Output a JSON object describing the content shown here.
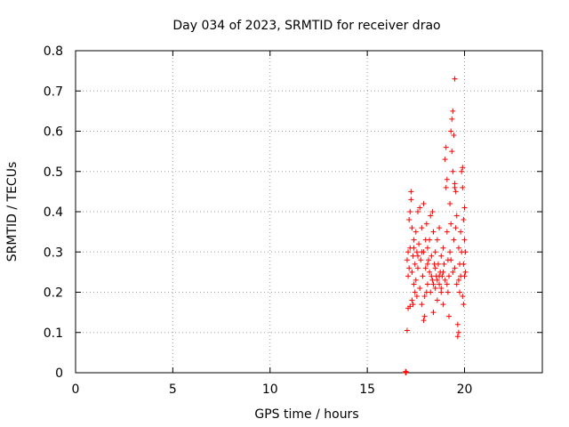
{
  "chart_data": {
    "type": "scatter",
    "title": "Day 034 of 2023, SRMTID for receiver drao",
    "xlabel": "GPS time / hours",
    "ylabel": "SRMTID / TECUs",
    "xlim": [
      0,
      24
    ],
    "ylim": [
      0,
      0.8
    ],
    "xticks": [
      0,
      5,
      10,
      15,
      20
    ],
    "yticks": [
      0,
      0.1,
      0.2,
      0.3,
      0.4,
      0.5,
      0.6,
      0.7,
      0.8
    ],
    "xtick_labels": [
      "0",
      "5",
      "10",
      "15",
      "20"
    ],
    "ytick_labels": [
      "0",
      "0.1",
      "0.2",
      "0.3",
      "0.4",
      "0.5",
      "0.6",
      "0.7",
      "0.8"
    ],
    "grid": true,
    "marker": "+",
    "marker_color": "#ff0000",
    "series": [
      {
        "name": "SRMTID",
        "points": [
          [
            16.97,
            0.0
          ],
          [
            16.97,
            0.003
          ],
          [
            17.0,
            0.001
          ],
          [
            17.0,
            0.002
          ],
          [
            17.05,
            0.105
          ],
          [
            17.1,
            0.16
          ],
          [
            17.2,
            0.165
          ],
          [
            17.3,
            0.18
          ],
          [
            17.35,
            0.17
          ],
          [
            17.05,
            0.28
          ],
          [
            17.1,
            0.3
          ],
          [
            17.15,
            0.26
          ],
          [
            17.2,
            0.31
          ],
          [
            17.1,
            0.24
          ],
          [
            17.15,
            0.38
          ],
          [
            17.2,
            0.4
          ],
          [
            17.25,
            0.43
          ],
          [
            17.25,
            0.45
          ],
          [
            17.3,
            0.36
          ],
          [
            17.3,
            0.25
          ],
          [
            17.35,
            0.29
          ],
          [
            17.4,
            0.22
          ],
          [
            17.4,
            0.33
          ],
          [
            17.45,
            0.27
          ],
          [
            17.45,
            0.2
          ],
          [
            17.5,
            0.23
          ],
          [
            17.5,
            0.35
          ],
          [
            17.55,
            0.3
          ],
          [
            17.55,
            0.19
          ],
          [
            17.6,
            0.4
          ],
          [
            17.6,
            0.26
          ],
          [
            17.65,
            0.32
          ],
          [
            17.7,
            0.41
          ],
          [
            17.7,
            0.21
          ],
          [
            17.75,
            0.28
          ],
          [
            17.8,
            0.36
          ],
          [
            17.8,
            0.17
          ],
          [
            17.85,
            0.24
          ],
          [
            17.9,
            0.42
          ],
          [
            17.9,
            0.3
          ],
          [
            17.95,
            0.19
          ],
          [
            18.0,
            0.33
          ],
          [
            18.0,
            0.26
          ],
          [
            18.05,
            0.2
          ],
          [
            17.9,
            0.13
          ],
          [
            17.95,
            0.14
          ],
          [
            18.05,
            0.37
          ],
          [
            18.1,
            0.22
          ],
          [
            18.1,
            0.31
          ],
          [
            18.15,
            0.28
          ],
          [
            18.2,
            0.25
          ],
          [
            18.2,
            0.33
          ],
          [
            18.25,
            0.39
          ],
          [
            18.25,
            0.2
          ],
          [
            18.3,
            0.29
          ],
          [
            18.35,
            0.23
          ],
          [
            18.35,
            0.4
          ],
          [
            18.4,
            0.15
          ],
          [
            18.4,
            0.35
          ],
          [
            18.45,
            0.27
          ],
          [
            18.5,
            0.3
          ],
          [
            18.5,
            0.21
          ],
          [
            18.55,
            0.24
          ],
          [
            18.6,
            0.33
          ],
          [
            18.6,
            0.18
          ],
          [
            18.65,
            0.27
          ],
          [
            18.7,
            0.22
          ],
          [
            18.7,
            0.36
          ],
          [
            18.75,
            0.25
          ],
          [
            18.8,
            0.29
          ],
          [
            18.8,
            0.2
          ],
          [
            18.85,
            0.24
          ],
          [
            18.9,
            0.31
          ],
          [
            18.9,
            0.17
          ],
          [
            18.95,
            0.27
          ],
          [
            19.0,
            0.23
          ],
          [
            19.0,
            0.53
          ],
          [
            19.05,
            0.46
          ],
          [
            19.05,
            0.56
          ],
          [
            19.1,
            0.48
          ],
          [
            19.1,
            0.35
          ],
          [
            19.15,
            0.28
          ],
          [
            19.15,
            0.2
          ],
          [
            19.2,
            0.14
          ],
          [
            19.2,
            0.24
          ],
          [
            19.25,
            0.3
          ],
          [
            19.25,
            0.42
          ],
          [
            19.3,
            0.37
          ],
          [
            19.3,
            0.6
          ],
          [
            19.35,
            0.55
          ],
          [
            19.35,
            0.63
          ],
          [
            19.4,
            0.65
          ],
          [
            19.4,
            0.5
          ],
          [
            19.4,
            0.25
          ],
          [
            19.45,
            0.59
          ],
          [
            19.45,
            0.33
          ],
          [
            19.5,
            0.47
          ],
          [
            19.5,
            0.46
          ],
          [
            19.5,
            0.73
          ],
          [
            19.55,
            0.45
          ],
          [
            19.55,
            0.36
          ],
          [
            19.6,
            0.39
          ],
          [
            19.6,
            0.22
          ],
          [
            19.65,
            0.12
          ],
          [
            19.65,
            0.09
          ],
          [
            19.7,
            0.1
          ],
          [
            19.7,
            0.31
          ],
          [
            19.75,
            0.27
          ],
          [
            19.75,
            0.2
          ],
          [
            19.8,
            0.35
          ],
          [
            19.8,
            0.24
          ],
          [
            19.85,
            0.3
          ],
          [
            19.85,
            0.5
          ],
          [
            19.9,
            0.51
          ],
          [
            19.9,
            0.46
          ],
          [
            19.95,
            0.38
          ],
          [
            19.95,
            0.27
          ],
          [
            20.0,
            0.33
          ],
          [
            20.0,
            0.24
          ],
          [
            20.05,
            0.3
          ],
          [
            20.05,
            0.25
          ],
          [
            19.95,
            0.17
          ],
          [
            19.9,
            0.19
          ],
          [
            20.0,
            0.41
          ],
          [
            18.5,
            0.26
          ],
          [
            18.7,
            0.24
          ],
          [
            18.9,
            0.25
          ],
          [
            19.1,
            0.22
          ],
          [
            18.3,
            0.24
          ],
          [
            18.1,
            0.27
          ],
          [
            17.8,
            0.3
          ],
          [
            17.6,
            0.29
          ],
          [
            17.4,
            0.31
          ],
          [
            19.3,
            0.28
          ],
          [
            19.5,
            0.26
          ],
          [
            19.7,
            0.23
          ],
          [
            18.8,
            0.21
          ],
          [
            18.6,
            0.23
          ],
          [
            18.4,
            0.22
          ]
        ]
      }
    ]
  }
}
